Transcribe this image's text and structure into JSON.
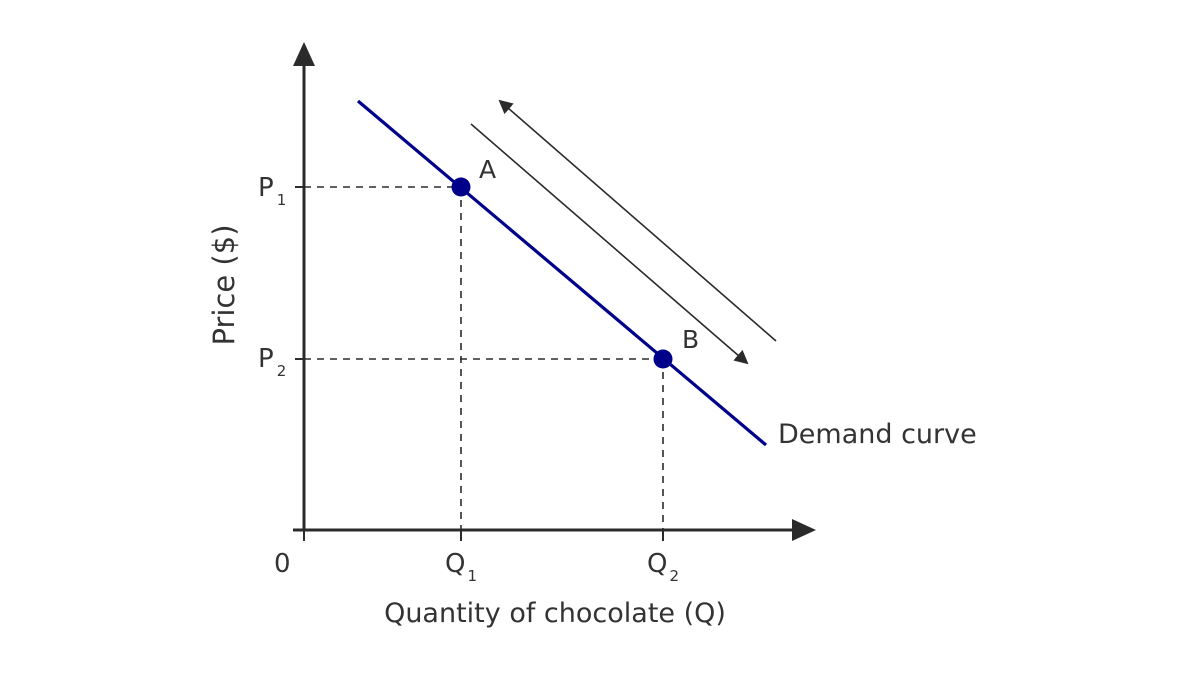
{
  "axes": {
    "y_label": "Price ($)",
    "x_label": "Quantity of chocolate (Q)",
    "origin_label": "0"
  },
  "ticks": {
    "y": [
      {
        "base": "P",
        "sub": "1"
      },
      {
        "base": "P",
        "sub": "2"
      }
    ],
    "x": [
      {
        "base": "Q",
        "sub": "1"
      },
      {
        "base": "Q",
        "sub": "2"
      }
    ]
  },
  "points": [
    {
      "label": "A"
    },
    {
      "label": "B"
    }
  ],
  "curve": {
    "label": "Demand curve"
  },
  "colors": {
    "curve": "#00008b",
    "axis": "#2b2b2b",
    "text": "#333333",
    "guide": "#2b2b2b"
  }
}
